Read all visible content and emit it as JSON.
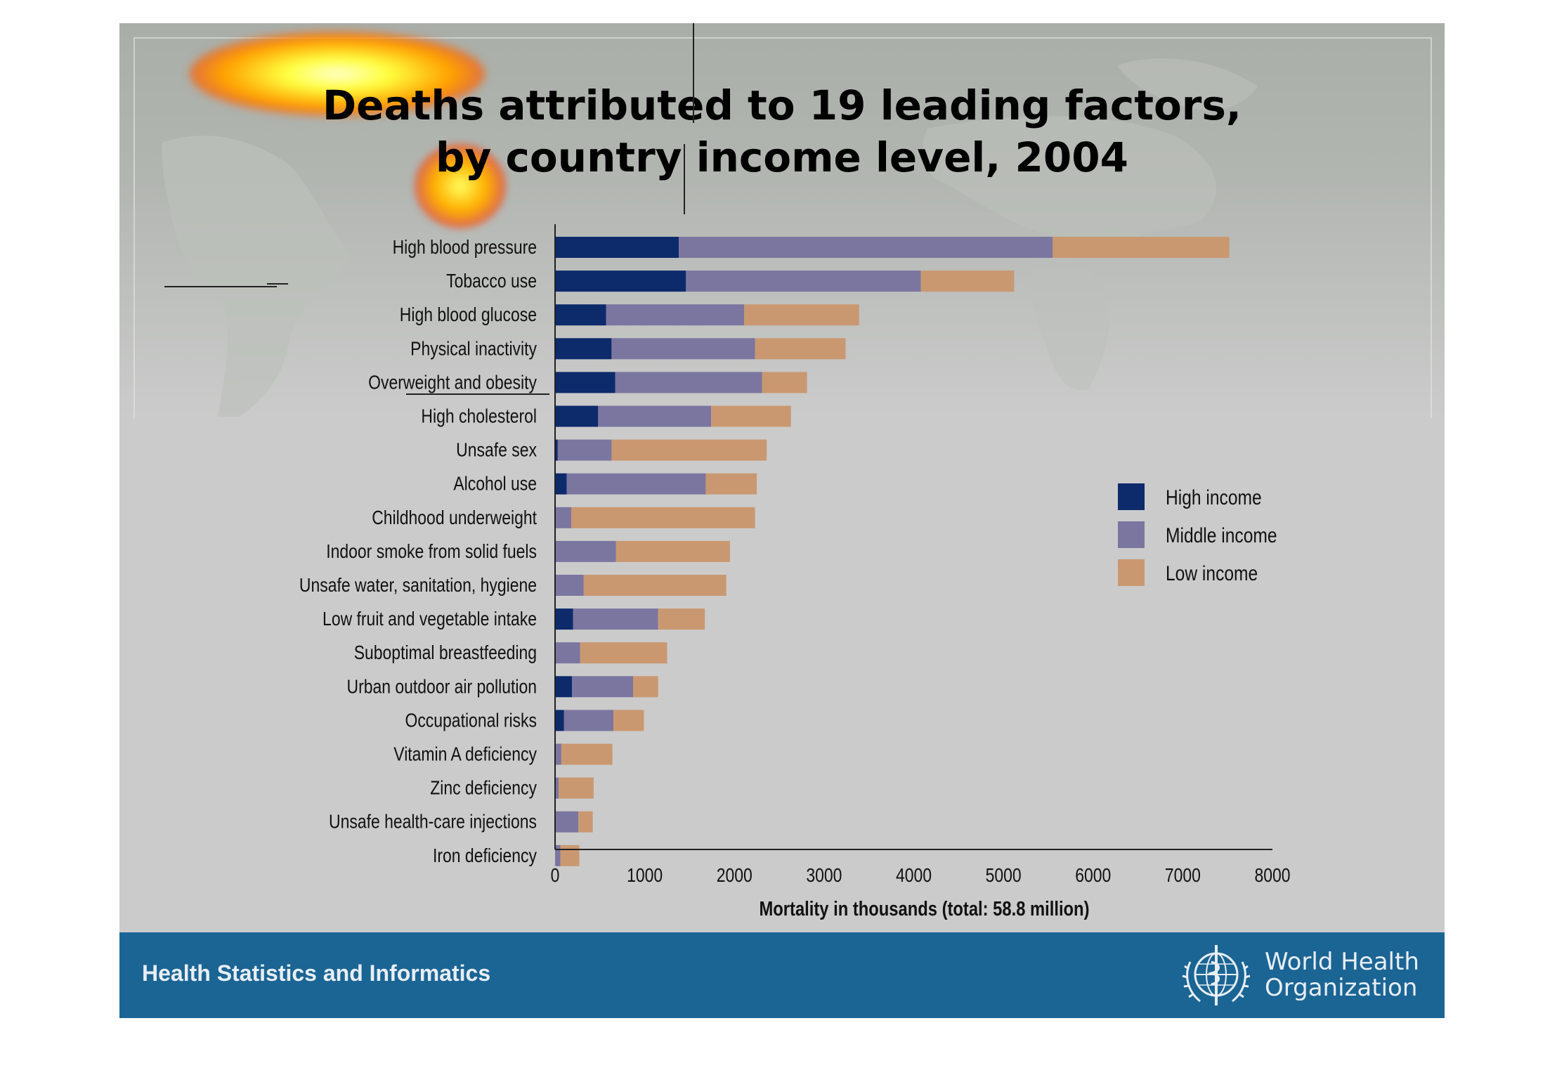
{
  "chart_data": {
    "type": "bar",
    "orientation": "horizontal",
    "stacked": true,
    "title": [
      "Deaths attributed to 19 leading factors,",
      "by country income level, 2004"
    ],
    "xlabel": "Mortality in thousands (total: 58.8 million)",
    "ylabel": "",
    "xlim": [
      0,
      8000
    ],
    "xticks": [
      0,
      1000,
      2000,
      3000,
      4000,
      5000,
      6000,
      7000,
      8000
    ],
    "grid": false,
    "legend_position": "right",
    "categories": [
      "High blood pressure",
      "Tobacco use",
      "High blood glucose",
      "Physical inactivity",
      "Overweight and obesity",
      "High cholesterol",
      "Unsafe sex",
      "Alcohol use",
      "Childhood underweight",
      "Indoor smoke from solid fuels",
      "Unsafe water, sanitation, hygiene",
      "Low fruit and vegetable intake",
      "Suboptimal breastfeeding",
      "Urban outdoor air pollution",
      "Occupational risks",
      "Vitamin A deficiency",
      "Zinc deficiency",
      "Unsafe health-care injections",
      "Iron deficiency"
    ],
    "series": [
      {
        "name": "High income",
        "color": "#0d2a6b",
        "values": [
          1380,
          1460,
          570,
          630,
          670,
          480,
          30,
          130,
          0,
          0,
          0,
          200,
          0,
          190,
          100,
          0,
          0,
          0,
          0
        ]
      },
      {
        "name": "Middle income",
        "color": "#7b76a0",
        "values": [
          4170,
          2620,
          1540,
          1600,
          1640,
          1260,
          600,
          1550,
          180,
          680,
          320,
          950,
          280,
          680,
          550,
          70,
          40,
          260,
          60
        ]
      },
      {
        "name": "Low income",
        "color": "#ca9870",
        "values": [
          1970,
          1040,
          1280,
          1010,
          500,
          890,
          1730,
          570,
          2050,
          1270,
          1590,
          520,
          970,
          280,
          340,
          570,
          390,
          160,
          210
        ]
      }
    ]
  },
  "footer": {
    "left_text": "Health Statistics and Informatics",
    "org_name": [
      "World Health",
      "Organization"
    ]
  },
  "colors": {
    "footer_background": "#1b6594",
    "slide_background": "#cbcbcb"
  }
}
